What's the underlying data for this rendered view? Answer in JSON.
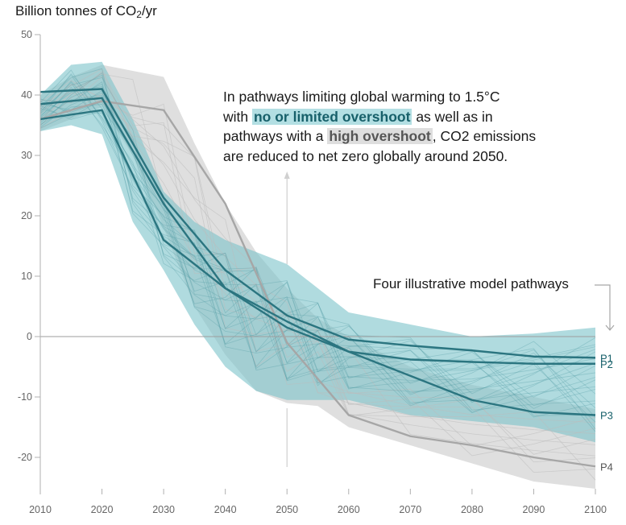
{
  "chart_data": {
    "type": "line",
    "title": "",
    "ylabel_prefix": "Billion tonnes of CO",
    "ylabel_sub": "2",
    "ylabel_suffix": "/yr",
    "xlabel": "",
    "x": [
      2010,
      2020,
      2030,
      2040,
      2050,
      2060,
      2070,
      2080,
      2090,
      2100
    ],
    "xlim": [
      2010,
      2100
    ],
    "ylim": [
      -25,
      50
    ],
    "yticks": [
      50,
      40,
      30,
      20,
      10,
      0,
      -10,
      -20
    ],
    "xticks": [
      2010,
      2020,
      2030,
      2040,
      2050,
      2060,
      2070,
      2080,
      2090,
      2100
    ],
    "grid": false,
    "zero_line": true,
    "bands": [
      {
        "name": "high overshoot range",
        "color": "#d9d9d9",
        "x": [
          2010,
          2015,
          2020,
          2025,
          2030,
          2035,
          2040,
          2045,
          2050,
          2055,
          2060,
          2070,
          2080,
          2090,
          2100
        ],
        "upper": [
          40,
          43,
          45,
          44,
          43,
          32,
          22,
          14,
          8,
          3,
          0,
          -5,
          -8,
          -10,
          -12
        ],
        "lower": [
          34,
          36,
          38,
          30,
          18,
          5,
          -3,
          -9,
          -11,
          -11.5,
          -15,
          -18,
          -21,
          -24,
          -27
        ]
      },
      {
        "name": "no or limited overshoot range",
        "color": "#7cc3ca",
        "x": [
          2010,
          2015,
          2020,
          2025,
          2030,
          2035,
          2040,
          2045,
          2050,
          2055,
          2060,
          2070,
          2080,
          2090,
          2100
        ],
        "upper": [
          40,
          45,
          45.5,
          36,
          24,
          19,
          16,
          14,
          12,
          8,
          4,
          2,
          0,
          0.5,
          1.5
        ],
        "lower": [
          34,
          35,
          33.5,
          19,
          11,
          2,
          -5,
          -9,
          -10.5,
          -10.5,
          -10.5,
          -13,
          -14,
          -15,
          -17.5
        ]
      }
    ],
    "series": [
      {
        "name": "P1",
        "group": "no or limited overshoot",
        "color": "#2b7580",
        "values": [
          40.5,
          41,
          23,
          11,
          3.5,
          -0.5,
          -1.5,
          -2.3,
          -3.3,
          -3.5
        ]
      },
      {
        "name": "P2",
        "group": "no or limited overshoot",
        "color": "#2b7580",
        "values": [
          38.5,
          39.5,
          22,
          8,
          2.5,
          -2.5,
          -3.8,
          -4.2,
          -4.5,
          -4.5
        ]
      },
      {
        "name": "P3",
        "group": "no or limited overshoot",
        "color": "#2b7580",
        "values": [
          36,
          37.5,
          16,
          8,
          1.5,
          -2.5,
          -6.5,
          -10.5,
          -12.5,
          -13
        ]
      },
      {
        "name": "P4",
        "group": "high overshoot",
        "color": "#a6a6a6",
        "values": [
          36,
          39,
          37.5,
          22,
          -1,
          -13,
          -16.5,
          -18,
          -20,
          -21.5
        ]
      }
    ],
    "annotations": {
      "main_line1": "In pathways limiting global warming to 1.5°C",
      "main_line2_pre": "with ",
      "main_highlight_teal": "no or limited overshoot",
      "main_line2_post": " as well as in",
      "main_line3_pre": "pathways with a ",
      "main_highlight_gray": "high overshoot",
      "main_line3_post": ", CO2 emissions",
      "main_line4": "are reduced to net zero globally around 2050.",
      "pathways_label": "Four illustrative model pathways"
    },
    "legend": "none"
  }
}
